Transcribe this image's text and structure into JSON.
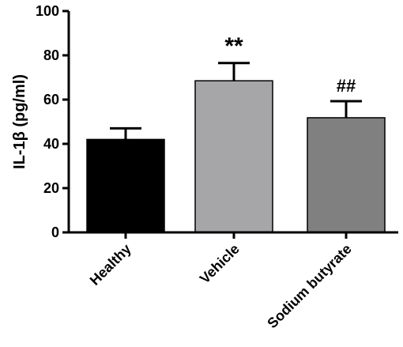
{
  "chart_data": {
    "type": "bar",
    "ylabel": "IL-1β (pg/ml)",
    "xlabel": "",
    "ylim": [
      0,
      100
    ],
    "yticks": [
      0,
      20,
      40,
      60,
      80,
      100
    ],
    "grid": false,
    "categories": [
      "Healthy",
      "Vehicle",
      "Sodium butyrate"
    ],
    "values": [
      42,
      68.5,
      51.8
    ],
    "error_upper": [
      5,
      8,
      7.5
    ],
    "colors": [
      "#000000",
      "#a6a6a8",
      "#808080"
    ],
    "annotations": [
      "",
      "**",
      "##"
    ]
  }
}
